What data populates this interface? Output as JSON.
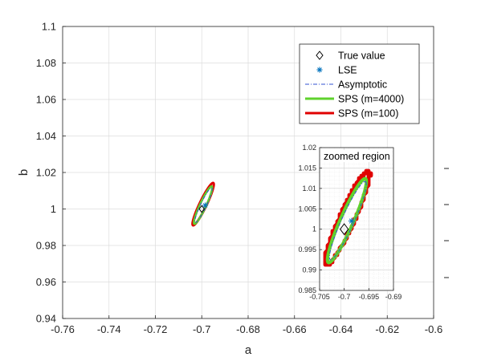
{
  "chart_data": [
    {
      "type": "line",
      "xlabel": "a",
      "ylabel": "b",
      "xlim": [
        -0.76,
        -0.6
      ],
      "ylim": [
        0.94,
        1.1
      ],
      "xticks": [
        "-0.76",
        "-0.74",
        "-0.72",
        "-0.7",
        "-0.68",
        "-0.66",
        "-0.64",
        "-0.62",
        "-0.6"
      ],
      "yticks": [
        "0.94",
        "0.96",
        "0.98",
        "1",
        "1.02",
        "1.04",
        "1.06",
        "1.08",
        "1.1"
      ],
      "grid": true,
      "legend_placement": "top-right",
      "legend": [
        {
          "label": "True value",
          "marker": "diamond",
          "color": "#000000"
        },
        {
          "label": "LSE",
          "marker": "asterisk",
          "color": "#0072bd"
        },
        {
          "label": "Asymptotic",
          "style": "dash-dot",
          "color": "#3050d0"
        },
        {
          "label": "SPS (m=4000)",
          "style": "solid",
          "color": "#5fd22c"
        },
        {
          "label": "SPS (m=100)",
          "style": "solid",
          "color": "#e00000"
        }
      ],
      "true_value": {
        "a": -0.7,
        "b": 1.0
      },
      "lse": {
        "a": -0.6985,
        "b": 1.002
      },
      "series": [
        {
          "name": "Asymptotic",
          "a_range": [
            -0.703,
            -0.6955
          ],
          "b_range": [
            0.9925,
            1.0117
          ]
        },
        {
          "name": "SPS (m=4000)",
          "a_range": [
            -0.7034,
            -0.6955
          ],
          "b_range": [
            0.9918,
            1.0124
          ]
        },
        {
          "name": "SPS (m=100)",
          "a_range": [
            -0.704,
            -0.6948
          ],
          "b_range": [
            0.991,
            1.0143
          ]
        }
      ]
    },
    {
      "type": "line",
      "title": "zoomed region",
      "xlim": [
        -0.705,
        -0.69
      ],
      "ylim": [
        0.985,
        1.02
      ],
      "xticks": [
        "-0.705",
        "-0.7",
        "-0.695",
        "-0.69"
      ],
      "yticks": [
        "0.985",
        "0.99",
        "0.995",
        "1",
        "1.005",
        "1.01",
        "1.015",
        "1.02"
      ],
      "grid": true
    }
  ],
  "colors": {
    "true_value": "#000000",
    "lse": "#0072bd",
    "asymptotic": "#3050d0",
    "sps4000": "#5fd22c",
    "sps100": "#e00000"
  }
}
